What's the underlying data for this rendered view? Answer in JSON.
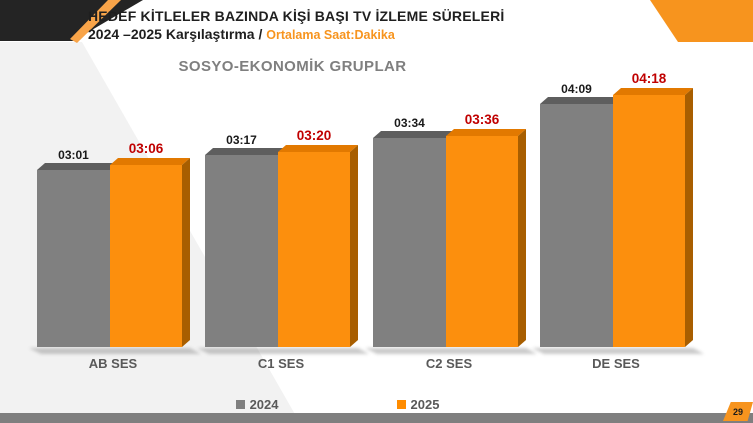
{
  "header": {
    "title_line1": "HEDEF KİTLELER BAZINDA KİŞİ BAŞI TV İZLEME SÜRELERİ",
    "title_line2_black": "2024 –2025 Karşılaştırma / ",
    "title_line2_orange": "Ortalama Saat:Dakika"
  },
  "chart_subtitle": "SOSYO-EKONOMİK GRUPLAR",
  "page_number": "29",
  "legend": [
    {
      "label": "2024",
      "color": "#7F7F7F"
    },
    {
      "label": "2025",
      "color": "#FF8C00"
    }
  ],
  "colors": {
    "accent_black": "#242424",
    "accent_orange": "#F7941E",
    "accent_orange_light": "#F8A449",
    "wedge_gray": "#F2F2F2",
    "bottom_bar_gray": "#7F7F7F",
    "bar_gray_front": "#808080",
    "bar_gray_top": "#5E5E5E",
    "bar_orange_front": "#FC8F0D",
    "bar_orange_top": "#E27900",
    "bar_orange_side": "#A85E00",
    "value_label_2024": "#1A1A1A",
    "value_label_2025": "#C00000",
    "category_label": "#595959"
  },
  "chart_data": {
    "type": "bar",
    "title": "SOSYO-EKONOMİK GRUPLAR",
    "unit": "Ortalama Saat:Dakika (h:mm)",
    "categories": [
      "AB SES",
      "C1 SES",
      "C2 SES",
      "DE SES"
    ],
    "series": [
      {
        "name": "2024",
        "values_hhmm": [
          "03:01",
          "03:17",
          "03:34",
          "04:09"
        ],
        "values_minutes": [
          181,
          197,
          214,
          249
        ],
        "color": "#808080"
      },
      {
        "name": "2025",
        "values_hhmm": [
          "03:06",
          "03:20",
          "03:36",
          "04:18"
        ],
        "values_minutes": [
          186,
          200,
          216,
          258
        ],
        "color": "#FC8F0D"
      }
    ],
    "value_labels_shown": true,
    "ylim_minutes": [
      0,
      270
    ],
    "grid": false,
    "y_axis_shown": false,
    "legend_position": "bottom",
    "style": "3d-column"
  }
}
